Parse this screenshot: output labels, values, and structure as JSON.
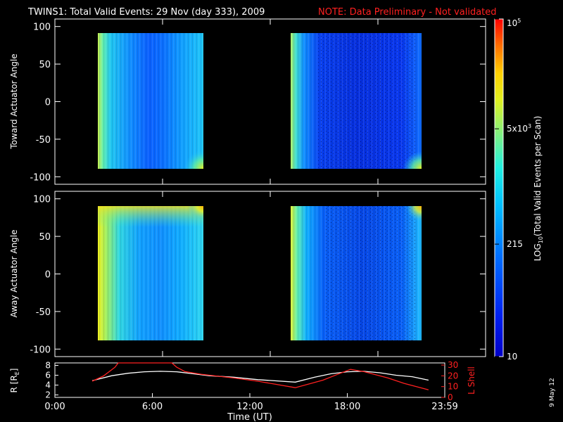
{
  "title": {
    "main": "TWINS1: Total Valid Events: 29 Nov (day 333), 2009",
    "note": "NOTE: Data Preliminary - Not validated",
    "main_color": "#ffffff",
    "note_color": "#ff2020"
  },
  "side_date": "9 May 12",
  "chart_data": [
    {
      "type": "heatmap",
      "ylabel": "Toward Actuator Angle",
      "ylim": [
        -110,
        110
      ],
      "yticks": [
        -100,
        -50,
        0,
        50,
        100
      ],
      "xlim": [
        0,
        24
      ],
      "data_blocks": [
        {
          "t_start": 2.3,
          "t_end": 9.0,
          "angle_min": -90,
          "angle_max": 90,
          "dominant_log_level": "low-medium"
        },
        {
          "t_start": 14.8,
          "t_end": 23.0,
          "angle_min": -90,
          "angle_max": 90,
          "dominant_log_level": "low"
        }
      ]
    },
    {
      "type": "heatmap",
      "ylabel": "Away Actuator Angle",
      "ylim": [
        -110,
        110
      ],
      "yticks": [
        -100,
        -50,
        0,
        50,
        100
      ],
      "xlim": [
        0,
        24
      ],
      "data_blocks": [
        {
          "t_start": 2.3,
          "t_end": 9.0,
          "angle_min": -90,
          "angle_max": 90,
          "dominant_log_level": "medium"
        },
        {
          "t_start": 14.8,
          "t_end": 23.0,
          "angle_min": -90,
          "angle_max": 90,
          "dominant_log_level": "low-medium"
        }
      ]
    },
    {
      "type": "line",
      "ylabel_left": "R [R",
      "ylabel_left_sub": "E",
      "ylabel_left_end": "]",
      "ylabel_right": "L Shell",
      "ylim_left": [
        1.5,
        8.5
      ],
      "yticks_left": [
        2,
        4,
        6,
        8
      ],
      "ylim_right": [
        0,
        32
      ],
      "yticks_right": [
        0,
        10,
        20,
        30
      ],
      "series": [
        {
          "axis": "left",
          "color": "#ffffff",
          "x": [
            2.3,
            3.5,
            4.5,
            5.5,
            6.5,
            7.5,
            8.5,
            9.5,
            11,
            12.5,
            14.8,
            16,
            17,
            18,
            19,
            20,
            21,
            22,
            23
          ],
          "y": [
            4.9,
            5.9,
            6.4,
            6.7,
            6.8,
            6.7,
            6.3,
            5.9,
            5.6,
            5.1,
            4.6,
            5.6,
            6.3,
            6.7,
            6.8,
            6.5,
            6.0,
            5.7,
            5.0
          ]
        },
        {
          "axis": "right",
          "color": "#ff2020",
          "x": [
            2.3,
            3.0,
            3.7,
            3.9,
            7.2,
            7.5,
            8.0,
            9.0,
            11.0,
            12.5,
            14.8,
            16.5,
            17.5,
            18.2,
            19.0,
            20.5,
            21.5,
            23.0
          ],
          "y": [
            15.0,
            20.0,
            28.0,
            32.0,
            32.0,
            28.0,
            24.0,
            21.5,
            18.0,
            15.0,
            9.0,
            16.0,
            22.0,
            26.0,
            24.0,
            18.0,
            13.0,
            7.0
          ]
        }
      ],
      "xticks": [
        "0:00",
        "6:00",
        "12:00",
        "18:00",
        "23:59"
      ],
      "xtick_values": [
        0,
        6,
        12,
        18,
        24
      ],
      "xlabel": "Time (UT)"
    }
  ],
  "colorbar": {
    "label_pre": "LOG",
    "label_sub": "10",
    "label_post": "(Total Valid Events per Scan)",
    "ticks": [
      {
        "text": "10",
        "exp": "5",
        "value": 100000
      },
      {
        "text": "5x10",
        "exp": "3",
        "value": 5000
      },
      {
        "text": "215",
        "exp": "",
        "value": 215
      },
      {
        "text": "10",
        "exp": "",
        "value": 10
      }
    ],
    "range": [
      10,
      100000
    ],
    "colors": [
      "#0000c8",
      "#0030ff",
      "#0090ff",
      "#00e0f0",
      "#40f0c0",
      "#a0f060",
      "#ffff00",
      "#ffb000",
      "#ff5000",
      "#ff0000"
    ]
  }
}
